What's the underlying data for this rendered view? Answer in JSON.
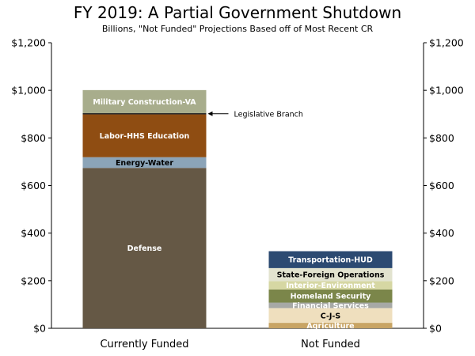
{
  "chart_data": {
    "type": "bar",
    "stacked": true,
    "title": "FY 2019: A Partial Government Shutdown",
    "subtitle": "Billions, \"Not Funded\" Projections Based off of Most Recent CR",
    "ylim": [
      0,
      1200
    ],
    "yticks": [
      0,
      200,
      400,
      600,
      800,
      1000,
      1200
    ],
    "ytick_labels": [
      "$0",
      "$200",
      "$400",
      "$600",
      "$800",
      "$1,000",
      "$1,200"
    ],
    "yaxis_both_sides": true,
    "grid": false,
    "categories": [
      "Currently Funded",
      "Not Funded"
    ],
    "stacks": [
      {
        "category": "Currently Funded",
        "segments": [
          {
            "name": "Defense",
            "value": 674,
            "color": "#655845",
            "label_color": "#ffffff"
          },
          {
            "name": "Energy-Water",
            "value": 45,
            "color": "#8ba4b8",
            "label_color": "#000000"
          },
          {
            "name": "Labor-HHS Education",
            "value": 180,
            "color": "#8f4d12",
            "label_color": "#ffffff"
          },
          {
            "name": "Legislative Branch",
            "value": 5,
            "color": "#1f1f1f",
            "label_color": "#000000"
          },
          {
            "name": "Military Construction-VA",
            "value": 97,
            "color": "#a8ad8c",
            "label_color": "#ffffff"
          }
        ]
      },
      {
        "category": "Not Funded",
        "segments": [
          {
            "name": "Agriculture",
            "value": 23,
            "color": "#c8a464",
            "label_color": "#ffffff"
          },
          {
            "name": "C-J-S",
            "value": 62,
            "color": "#efdfbe",
            "label_color": "#000000"
          },
          {
            "name": "Financial Services",
            "value": 23,
            "color": "#a7a9a6",
            "label_color": "#ffffff"
          },
          {
            "name": "Homeland Security",
            "value": 55,
            "color": "#7b864a",
            "label_color": "#ffffff"
          },
          {
            "name": "Interior-Environment",
            "value": 35,
            "color": "#d6d7a3",
            "label_color": "#ffffff"
          },
          {
            "name": "State-Foreign Operations",
            "value": 55,
            "color": "#e2e3cf",
            "label_color": "#000000"
          },
          {
            "name": "Transportation-HUD",
            "value": 71,
            "color": "#2c4a72",
            "label_color": "#ffffff"
          }
        ]
      }
    ],
    "annotations": [
      {
        "text": "Legislative Branch",
        "points_to": "Legislative Branch"
      }
    ]
  }
}
